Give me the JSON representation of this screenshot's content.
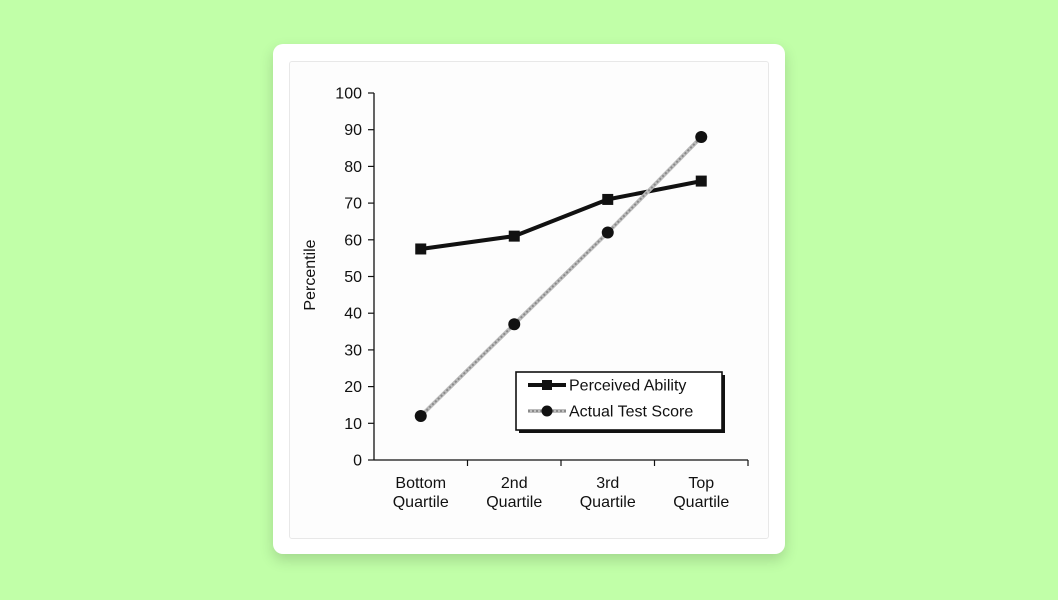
{
  "chart_data": {
    "type": "line",
    "title": "",
    "xlabel": "",
    "ylabel": "Percentile",
    "ylim": [
      0,
      100
    ],
    "yticks": [
      0,
      10,
      20,
      30,
      40,
      50,
      60,
      70,
      80,
      90,
      100
    ],
    "categories": [
      [
        "Bottom",
        "Quartile"
      ],
      [
        "2nd",
        "Quartile"
      ],
      [
        "3rd",
        "Quartile"
      ],
      [
        "Top",
        "Quartile"
      ]
    ],
    "series": [
      {
        "name": "Perceived Ability",
        "values": [
          57.5,
          61,
          71,
          76
        ],
        "marker": "square",
        "style": "solid",
        "color": "#111111"
      },
      {
        "name": "Actual Test Score",
        "values": [
          12,
          37,
          62,
          88
        ],
        "marker": "circle",
        "style": "dotted",
        "color": "#8a8a8a"
      }
    ],
    "legend_position": "bottom-right",
    "grid": false
  }
}
